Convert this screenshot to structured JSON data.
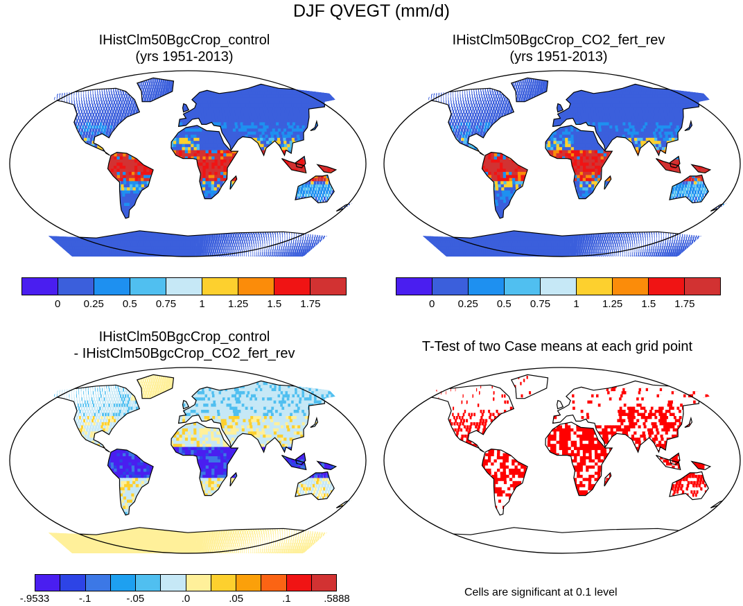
{
  "title": "DJF QVEGT (mm/d)",
  "panels": {
    "top_left": {
      "title_line1": "IHistClm50BgcCrop_control",
      "title_line2": "(yrs 1951-2013)"
    },
    "top_right": {
      "title_line1": "IHistClm50BgcCrop_CO2_fert_rev",
      "title_line2": "(yrs 1951-2013)"
    },
    "bottom_left": {
      "title_line1": "IHistClm50BgcCrop_control",
      "title_line2": "- IHistClm50BgcCrop_CO2_fert_rev"
    },
    "bottom_right": {
      "title_line1": "T-Test of two Case means at each grid point"
    }
  },
  "colorbar_main": {
    "labels": [
      "0",
      "0.25",
      "0.5",
      "0.75",
      "1",
      "1.25",
      "1.5",
      "1.75"
    ],
    "colors": [
      "#4a1ef0",
      "#3b5fdc",
      "#1e90f0",
      "#50bff0",
      "#c6e8f6",
      "#fdd02e",
      "#fb8c0a",
      "#f01414",
      "#d23232"
    ]
  },
  "colorbar_diff": {
    "labels": [
      "-.9533",
      "-.1",
      "-.05",
      ".0",
      ".05",
      ".1",
      ".5888"
    ],
    "colors": [
      "#4a1ef0",
      "#2d44e6",
      "#3c78e6",
      "#1ea0f0",
      "#50bff0",
      "#c6e8f6",
      "#fff09a",
      "#fdd02e",
      "#fba00a",
      "#fb6414",
      "#f01414",
      "#d23232"
    ]
  },
  "note": "Cells are significant at 0.1 level",
  "map_colors": {
    "ocean": "#ffffff",
    "coast": "#000000",
    "land_ttest": "#ffffff",
    "significant": "#ff0000"
  }
}
